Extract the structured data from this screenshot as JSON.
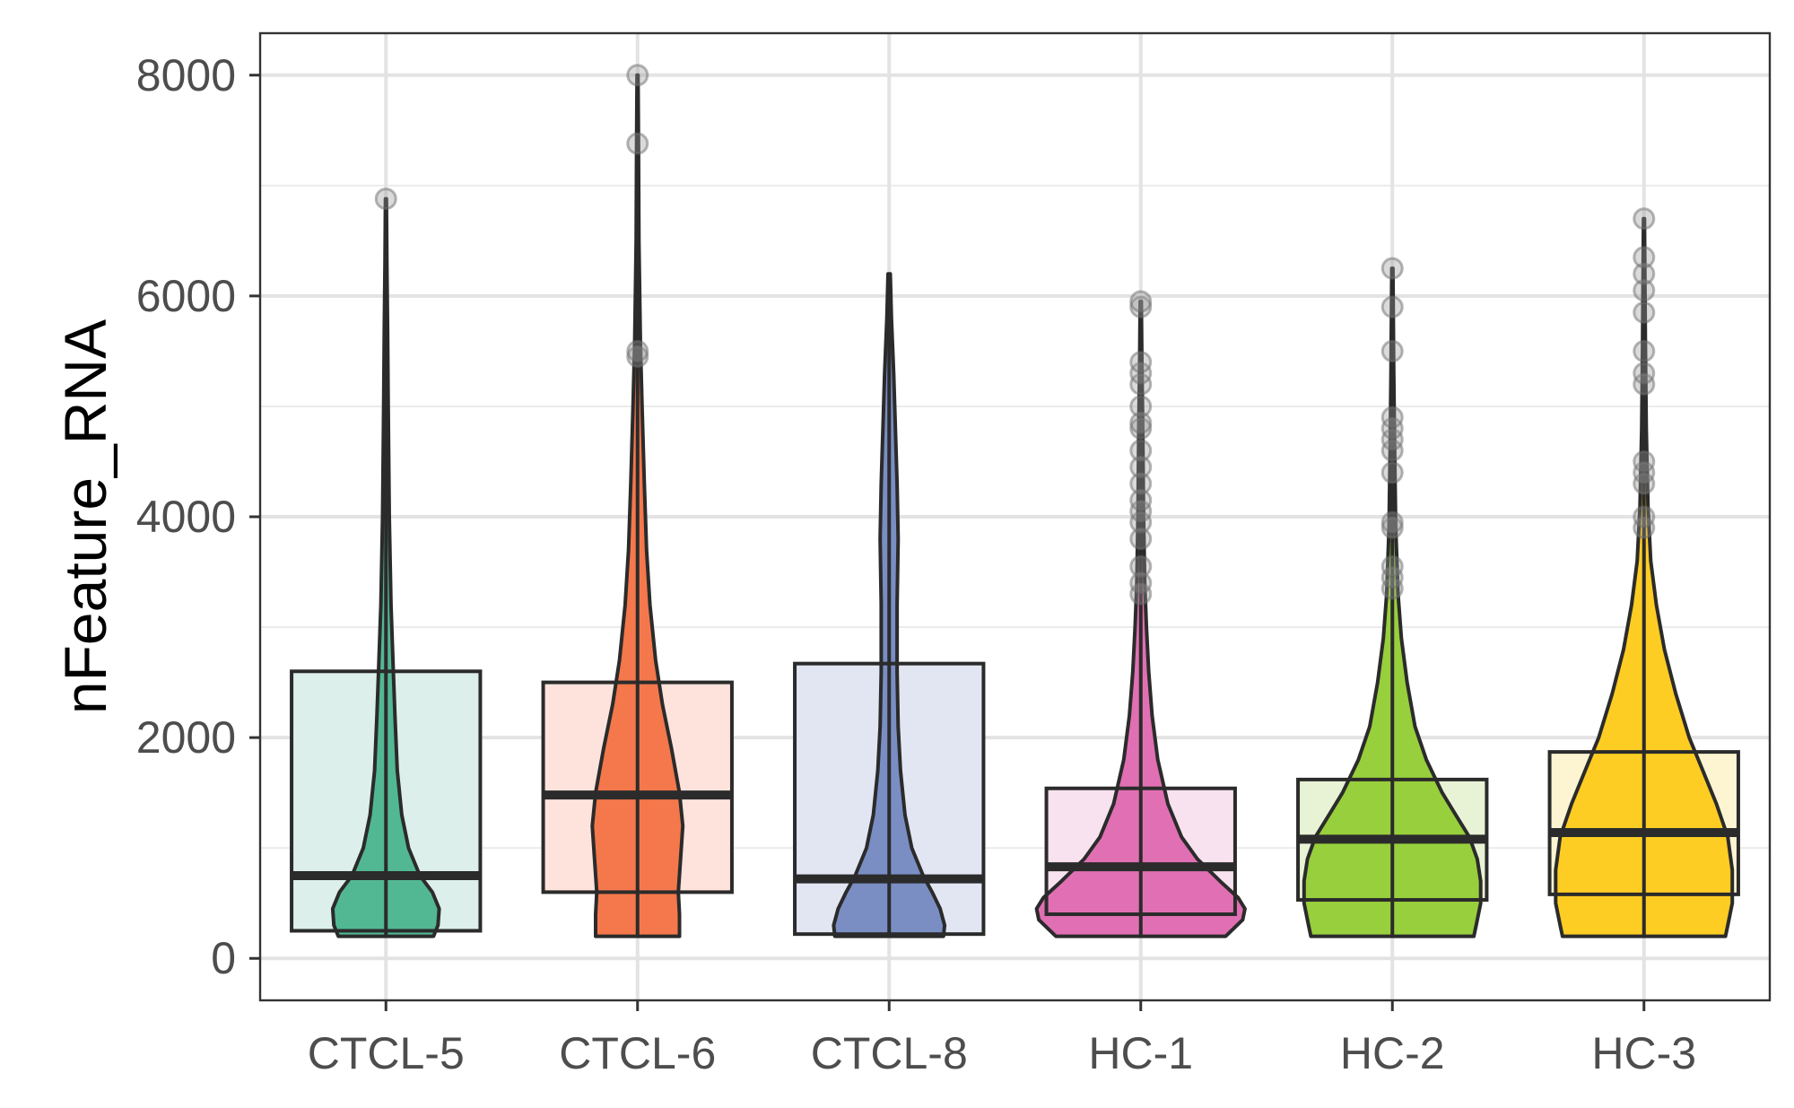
{
  "chart_data": {
    "type": "violin-box",
    "title": "",
    "xlabel": "",
    "ylabel": "nFeature_RNA",
    "ylim": [
      -380,
      8380
    ],
    "yticks": [
      0,
      2000,
      4000,
      6000,
      8000
    ],
    "ytick_labels": [
      "0",
      "2000",
      "4000",
      "6000",
      "8000"
    ],
    "grid": true,
    "legend": "none",
    "categories": [
      "CTCL-5",
      "CTCL-6",
      "CTCL-8",
      "HC-1",
      "HC-2",
      "HC-3"
    ],
    "series": [
      {
        "category": "CTCL-5",
        "color": "#52b893",
        "box_fill": "#ddefea",
        "box": {
          "q1": 250,
          "median": 750,
          "q3": 2600
        },
        "whisker": [
          200,
          6880
        ],
        "outliers": [
          6880
        ],
        "density": [
          [
            200,
            0.42
          ],
          [
            300,
            0.46
          ],
          [
            450,
            0.47
          ],
          [
            600,
            0.41
          ],
          [
            750,
            0.3
          ],
          [
            1000,
            0.2
          ],
          [
            1300,
            0.14
          ],
          [
            1700,
            0.1
          ],
          [
            2200,
            0.08
          ],
          [
            2600,
            0.065
          ],
          [
            3200,
            0.045
          ],
          [
            4000,
            0.03
          ],
          [
            5000,
            0.02
          ],
          [
            5700,
            0.015
          ],
          [
            6300,
            0.008
          ],
          [
            6880,
            0.004
          ]
        ]
      },
      {
        "category": "CTCL-6",
        "color": "#f4784b",
        "box_fill": "#fde3dc",
        "box": {
          "q1": 600,
          "median": 1480,
          "q3": 2500
        },
        "whisker": [
          200,
          8000
        ],
        "outliers": [
          5450,
          5500,
          7380,
          8000
        ],
        "density": [
          [
            200,
            0.37
          ],
          [
            400,
            0.37
          ],
          [
            600,
            0.36
          ],
          [
            900,
            0.38
          ],
          [
            1200,
            0.4
          ],
          [
            1500,
            0.37
          ],
          [
            1900,
            0.3
          ],
          [
            2300,
            0.22
          ],
          [
            2700,
            0.16
          ],
          [
            3200,
            0.11
          ],
          [
            3700,
            0.08
          ],
          [
            4300,
            0.06
          ],
          [
            5000,
            0.04
          ],
          [
            5600,
            0.025
          ],
          [
            6500,
            0.012
          ],
          [
            7400,
            0.008
          ],
          [
            8000,
            0.004
          ]
        ]
      },
      {
        "category": "CTCL-8",
        "color": "#7a8ec4",
        "box_fill": "#e2e6f2",
        "box": {
          "q1": 220,
          "median": 720,
          "q3": 2670
        },
        "whisker": [
          200,
          6200
        ],
        "outliers": [],
        "density": [
          [
            200,
            0.48
          ],
          [
            300,
            0.49
          ],
          [
            450,
            0.45
          ],
          [
            600,
            0.38
          ],
          [
            750,
            0.3
          ],
          [
            1000,
            0.2
          ],
          [
            1300,
            0.14
          ],
          [
            1700,
            0.1
          ],
          [
            2100,
            0.08
          ],
          [
            2600,
            0.07
          ],
          [
            3200,
            0.07
          ],
          [
            3800,
            0.08
          ],
          [
            4300,
            0.07
          ],
          [
            4800,
            0.055
          ],
          [
            5300,
            0.04
          ],
          [
            5800,
            0.02
          ],
          [
            6200,
            0.01
          ]
        ]
      },
      {
        "category": "HC-1",
        "color": "#e070b3",
        "box_fill": "#f8e2ef",
        "box": {
          "q1": 400,
          "median": 830,
          "q3": 1540
        },
        "whisker": [
          200,
          5950
        ],
        "outliers": [
          3300,
          3400,
          3550,
          3800,
          3950,
          4050,
          4150,
          4300,
          4450,
          4600,
          4800,
          4850,
          5000,
          5200,
          5300,
          5400,
          5900,
          5950
        ],
        "density": [
          [
            200,
            0.75
          ],
          [
            350,
            0.9
          ],
          [
            450,
            0.92
          ],
          [
            550,
            0.86
          ],
          [
            700,
            0.7
          ],
          [
            900,
            0.5
          ],
          [
            1100,
            0.36
          ],
          [
            1400,
            0.24
          ],
          [
            1800,
            0.15
          ],
          [
            2200,
            0.1
          ],
          [
            2600,
            0.07
          ],
          [
            3000,
            0.05
          ],
          [
            3400,
            0.035
          ],
          [
            4000,
            0.025
          ],
          [
            4800,
            0.018
          ],
          [
            5400,
            0.01
          ],
          [
            5950,
            0.005
          ]
        ]
      },
      {
        "category": "HC-2",
        "color": "#98cf3c",
        "box_fill": "#e8f3d6",
        "box": {
          "q1": 530,
          "median": 1080,
          "q3": 1620
        },
        "whisker": [
          200,
          6250
        ],
        "outliers": [
          3350,
          3450,
          3550,
          3900,
          3950,
          4400,
          4600,
          4700,
          4800,
          4900,
          5500,
          5900,
          6250
        ],
        "density": [
          [
            200,
            0.72
          ],
          [
            300,
            0.74
          ],
          [
            500,
            0.78
          ],
          [
            700,
            0.78
          ],
          [
            900,
            0.75
          ],
          [
            1100,
            0.68
          ],
          [
            1300,
            0.56
          ],
          [
            1500,
            0.44
          ],
          [
            1800,
            0.3
          ],
          [
            2100,
            0.2
          ],
          [
            2500,
            0.13
          ],
          [
            2900,
            0.08
          ],
          [
            3300,
            0.05
          ],
          [
            3900,
            0.03
          ],
          [
            4600,
            0.02
          ],
          [
            5300,
            0.012
          ],
          [
            6250,
            0.005
          ]
        ]
      },
      {
        "category": "HC-3",
        "color": "#fecd23",
        "box_fill": "#fdf4d2",
        "box": {
          "q1": 580,
          "median": 1140,
          "q3": 1870
        },
        "whisker": [
          200,
          6700
        ],
        "outliers": [
          3900,
          4000,
          4300,
          4400,
          4500,
          5200,
          5300,
          5500,
          5850,
          6050,
          6200,
          6350,
          6700
        ],
        "density": [
          [
            200,
            0.72
          ],
          [
            300,
            0.74
          ],
          [
            500,
            0.78
          ],
          [
            800,
            0.78
          ],
          [
            1100,
            0.74
          ],
          [
            1400,
            0.64
          ],
          [
            1700,
            0.52
          ],
          [
            2000,
            0.4
          ],
          [
            2400,
            0.28
          ],
          [
            2800,
            0.18
          ],
          [
            3200,
            0.11
          ],
          [
            3600,
            0.06
          ],
          [
            4100,
            0.035
          ],
          [
            4800,
            0.02
          ],
          [
            5600,
            0.012
          ],
          [
            6700,
            0.004
          ]
        ]
      }
    ]
  }
}
